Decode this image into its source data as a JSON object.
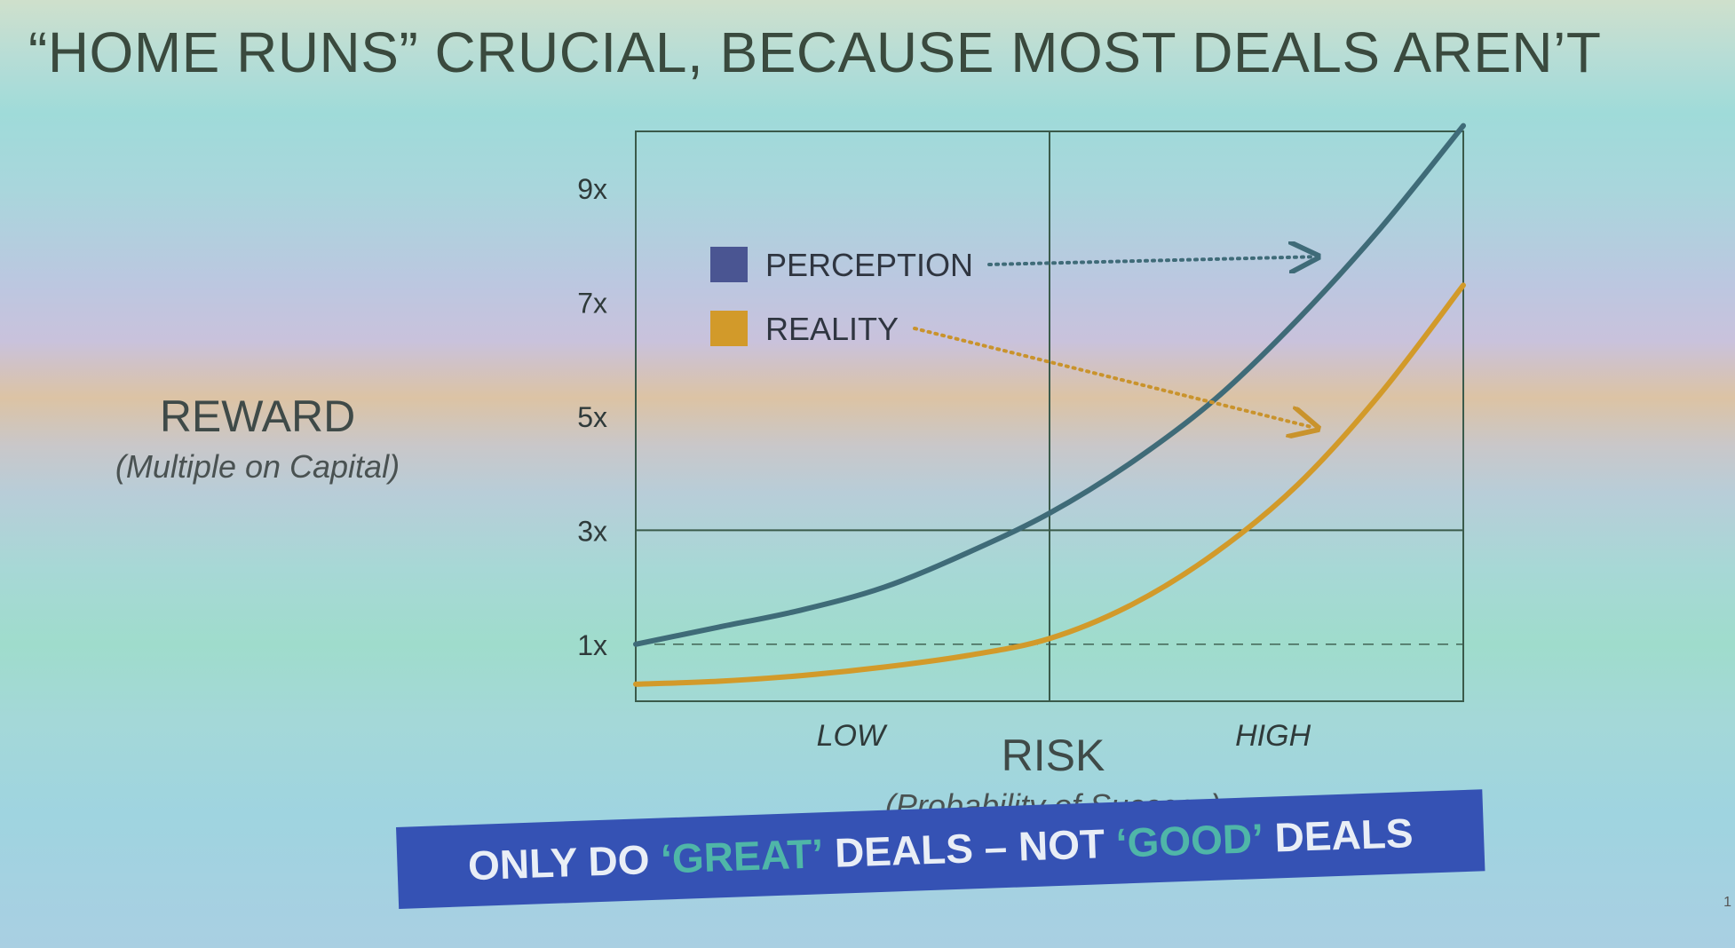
{
  "slide": {
    "title": "“HOME RUNS” CRUCIAL, BECAUSE MOST DEALS AREN’T",
    "banner": {
      "part1": "ONLY DO ",
      "highlight1": "‘GREAT’",
      "part2": " DEALS – NOT ",
      "highlight2": "‘GOOD’",
      "part3": " DEALS"
    },
    "page_number": "1"
  },
  "colors": {
    "perception": "#4a5592",
    "reality": "#d29a2a",
    "perception_line": "#3f6b78",
    "grid": "#3a5a4a",
    "banner": "#3552b4",
    "highlight": "#4fb6a8"
  },
  "chart_data": {
    "type": "line",
    "title": "",
    "ylabel": "REWARD",
    "ylabel_sub": "(Multiple on Capital)",
    "xlabel": "RISK",
    "xlabel_sub": "(Probability of Success)",
    "x_tick_labels": [
      "LOW",
      "HIGH"
    ],
    "y_ticks": [
      {
        "label": "1x",
        "value": 1
      },
      {
        "label": "3x",
        "value": 3
      },
      {
        "label": "5x",
        "value": 5
      },
      {
        "label": "7x",
        "value": 7
      },
      {
        "label": "9x",
        "value": 9
      }
    ],
    "xlim": [
      0,
      1
    ],
    "ylim": [
      0,
      10
    ],
    "reference_lines": [
      {
        "axis": "x",
        "value": 0.5,
        "style": "solid"
      },
      {
        "axis": "y",
        "value": 3,
        "style": "solid"
      },
      {
        "axis": "y",
        "value": 1,
        "style": "dashed"
      }
    ],
    "legend": {
      "placement": "top-left"
    },
    "series": [
      {
        "name": "PERCEPTION",
        "x": [
          0,
          0.1,
          0.2,
          0.3,
          0.4,
          0.5,
          0.6,
          0.7,
          0.8,
          0.9,
          1.0
        ],
        "y": [
          1.0,
          1.3,
          1.6,
          2.0,
          2.6,
          3.3,
          4.2,
          5.3,
          6.7,
          8.3,
          10.1
        ]
      },
      {
        "name": "REALITY",
        "x": [
          0,
          0.1,
          0.2,
          0.3,
          0.4,
          0.5,
          0.6,
          0.7,
          0.8,
          0.9,
          1.0
        ],
        "y": [
          0.3,
          0.35,
          0.45,
          0.6,
          0.8,
          1.1,
          1.7,
          2.6,
          3.8,
          5.4,
          7.3
        ]
      }
    ],
    "annotations": [
      {
        "from": "PERCEPTION",
        "to": {
          "x": 0.82,
          "y": 7.8
        },
        "style": "dotted-arrow"
      },
      {
        "from": "REALITY",
        "to": {
          "x": 0.82,
          "y": 4.8
        },
        "style": "dotted-arrow"
      }
    ]
  }
}
